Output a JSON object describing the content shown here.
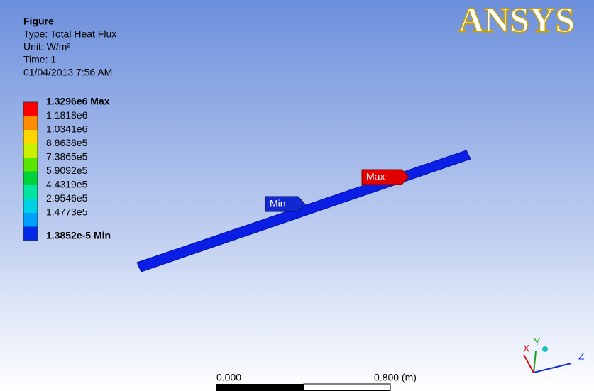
{
  "header": {
    "title": "Figure",
    "lines": [
      "Type: Total Heat Flux",
      "Unit: W/m²",
      "Time: 1",
      "01/04/2013 7:56 AM"
    ]
  },
  "legend": {
    "items": [
      {
        "label": "1.3296e6 Max",
        "color": "#ff0000"
      },
      {
        "label": "1.1818e6",
        "color": "#ff8c00"
      },
      {
        "label": "1.0341e6",
        "color": "#ffd700"
      },
      {
        "label": "8.8638e5",
        "color": "#c8f000"
      },
      {
        "label": "7.3865e5",
        "color": "#5ae600"
      },
      {
        "label": "5.9092e5",
        "color": "#00d23c"
      },
      {
        "label": "4.4319e5",
        "color": "#00e6a0"
      },
      {
        "label": "2.9546e5",
        "color": "#00d2e6"
      },
      {
        "label": "1.4773e5",
        "color": "#00a0ff"
      },
      {
        "label": "1.3852e-5 Min",
        "color": "#0028e6"
      }
    ]
  },
  "probes": {
    "max": "Max",
    "min": "Min"
  },
  "logo": "ANSYS",
  "scale": {
    "start": "0.000",
    "end": "0.800 (m)"
  },
  "triad": {
    "x": "X",
    "y": "Y",
    "z": "Z"
  }
}
